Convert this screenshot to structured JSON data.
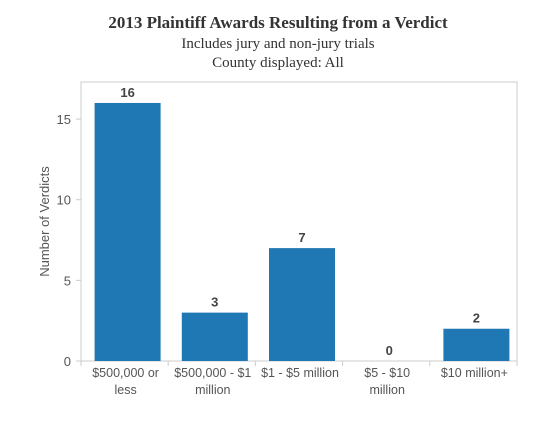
{
  "chart_data": {
    "type": "bar",
    "title": "2013 Plaintiff Awards Resulting from a Verdict",
    "subtitle": "Includes jury and non-jury trials",
    "subtitle2": "County displayed: All",
    "xlabel": "",
    "ylabel": "Number of Verdicts",
    "categories": [
      [
        "$500,000 or",
        "less"
      ],
      [
        "$500,000 - $1",
        "million"
      ],
      [
        "$1 - $5 million"
      ],
      [
        "$5 - $10",
        "million"
      ],
      [
        "$10 million+"
      ]
    ],
    "values": [
      16,
      3,
      7,
      0,
      2
    ],
    "data_labels": [
      "16",
      "3",
      "7",
      "0",
      "2"
    ],
    "yticks": [
      0,
      5,
      10,
      15
    ],
    "ylim": [
      0,
      17.3
    ],
    "grid": false,
    "colors": {
      "bar": "#1f77b4",
      "axis": "#cccccc",
      "text": "#555555",
      "label": "#444444"
    }
  }
}
